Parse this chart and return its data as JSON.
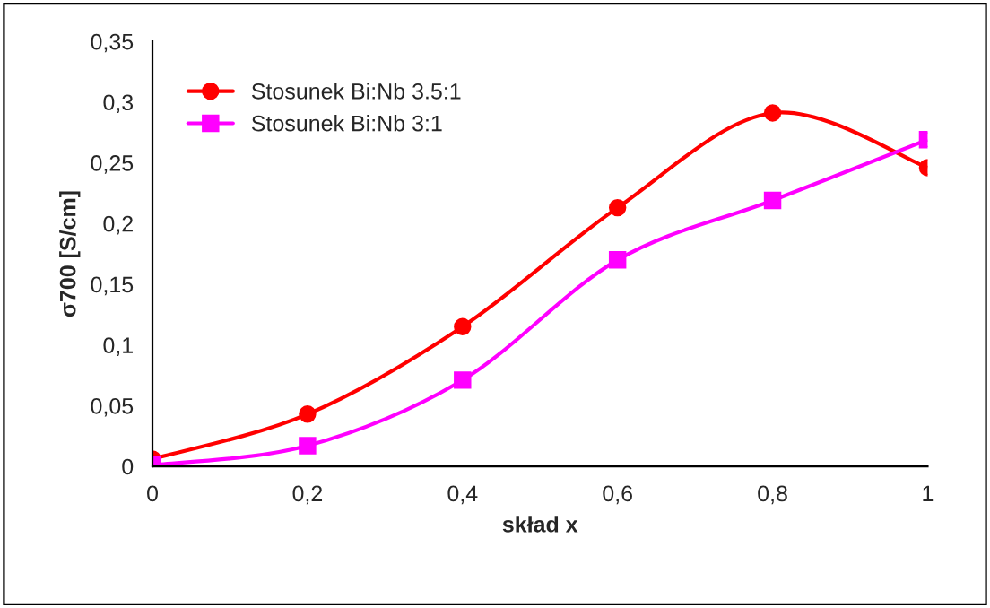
{
  "chart_data": {
    "type": "line",
    "xlabel": "skład x",
    "ylabel": "σ700 [S/cm]",
    "x": [
      0,
      0.2,
      0.4,
      0.6,
      0.8,
      1
    ],
    "series": [
      {
        "name": "Stosunek Bi:Nb 3.5:1",
        "color": "#ff0000",
        "marker": "circle",
        "values": [
          0.006,
          0.043,
          0.115,
          0.213,
          0.291,
          0.246
        ]
      },
      {
        "name": "Stosunek Bi:Nb 3:1",
        "color": "#ff00ff",
        "marker": "square",
        "values": [
          0.001,
          0.017,
          0.071,
          0.17,
          0.219,
          0.269
        ]
      }
    ],
    "xlim": [
      0,
      1
    ],
    "xticks": [
      0,
      {
        "value": 0.2,
        "label": "0,2"
      },
      {
        "value": 0.4,
        "label": "0,4"
      },
      {
        "value": 0.6,
        "label": "0,6"
      },
      {
        "value": 0.8,
        "label": "0,8"
      },
      1
    ],
    "ylim": [
      0,
      0.35
    ],
    "yticks": [
      0,
      {
        "value": 0.05,
        "label": "0,05"
      },
      {
        "value": 0.1,
        "label": "0,1"
      },
      {
        "value": 0.15,
        "label": "0,15"
      },
      {
        "value": 0.2,
        "label": "0,2"
      },
      {
        "value": 0.25,
        "label": "0,25"
      },
      {
        "value": 0.3,
        "label": "0,3"
      },
      {
        "value": 0.35,
        "label": "0,35"
      }
    ],
    "grid": false,
    "legend": "top left",
    "line_style": "solid"
  }
}
